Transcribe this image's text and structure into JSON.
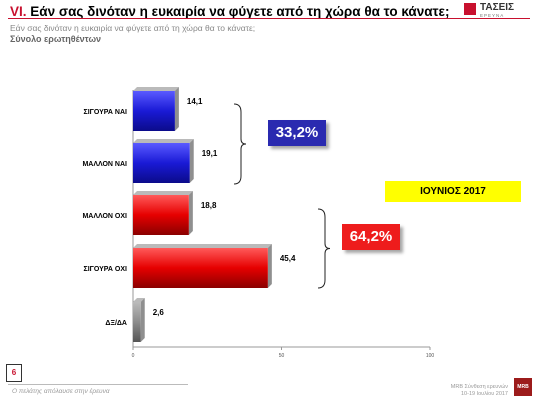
{
  "header": {
    "title_number": "VI.",
    "title_text": "Εάν σας δινόταν η ευκαιρία να φύγετε από τη χώρα θα το κάνατε;",
    "subtitle": "Εάν σας δινόταν η ευκαιρία να φύγετε από τη χώρα θα το κάνατε;",
    "base": "Σύνολο ερωτηθέντων",
    "logo_name": "ΤΑΣΕΙΣ",
    "logo_sub": "ΕΡΕΥΝΑ"
  },
  "chart_data": {
    "type": "bar",
    "orientation": "horizontal",
    "categories": [
      "ΣΙΓΟΥΡΑ ΝΑΙ",
      "ΜΑΛΛΟΝ ΝΑΙ",
      "ΜΑΛΛΟΝ ΟΧΙ",
      "ΣΙΓΟΥΡΑ ΟΧΙ",
      "ΔΞ/ΔΑ"
    ],
    "values": [
      14.1,
      19.1,
      18.8,
      45.4,
      2.6
    ],
    "value_labels": [
      "14,1",
      "19,1",
      "18,8",
      "45,4",
      "2,6"
    ],
    "bar_colors": [
      "#1a1ad6",
      "#1a1ad6",
      "#e60000",
      "#e60000",
      "#8c8c8c"
    ],
    "xlim": [
      0,
      100
    ],
    "xticks": [
      "0",
      "50",
      "100"
    ],
    "grid": false,
    "group_totals": [
      {
        "label": "33,2%",
        "categories": [
          "ΣΙΓΟΥΡΑ ΝΑΙ",
          "ΜΑΛΛΟΝ ΝΑΙ"
        ],
        "color": "#2a2ab0"
      },
      {
        "label": "64,2%",
        "categories": [
          "ΜΑΛΛΟΝ ΟΧΙ",
          "ΣΙΓΟΥΡΑ ΟΧΙ"
        ],
        "color": "#ee1c1c"
      }
    ],
    "period_label": "ΙΟΥΝΙΟΣ 2017"
  },
  "footer": {
    "page_number": "6",
    "left_text": "Ο πελάτης απόλαυσε στην έρευνα",
    "right_line1": "MRB Σύνθεση ερευνών",
    "right_line2": "10-19 Ιουλίου 2017",
    "mrb_logo": "MRB"
  }
}
